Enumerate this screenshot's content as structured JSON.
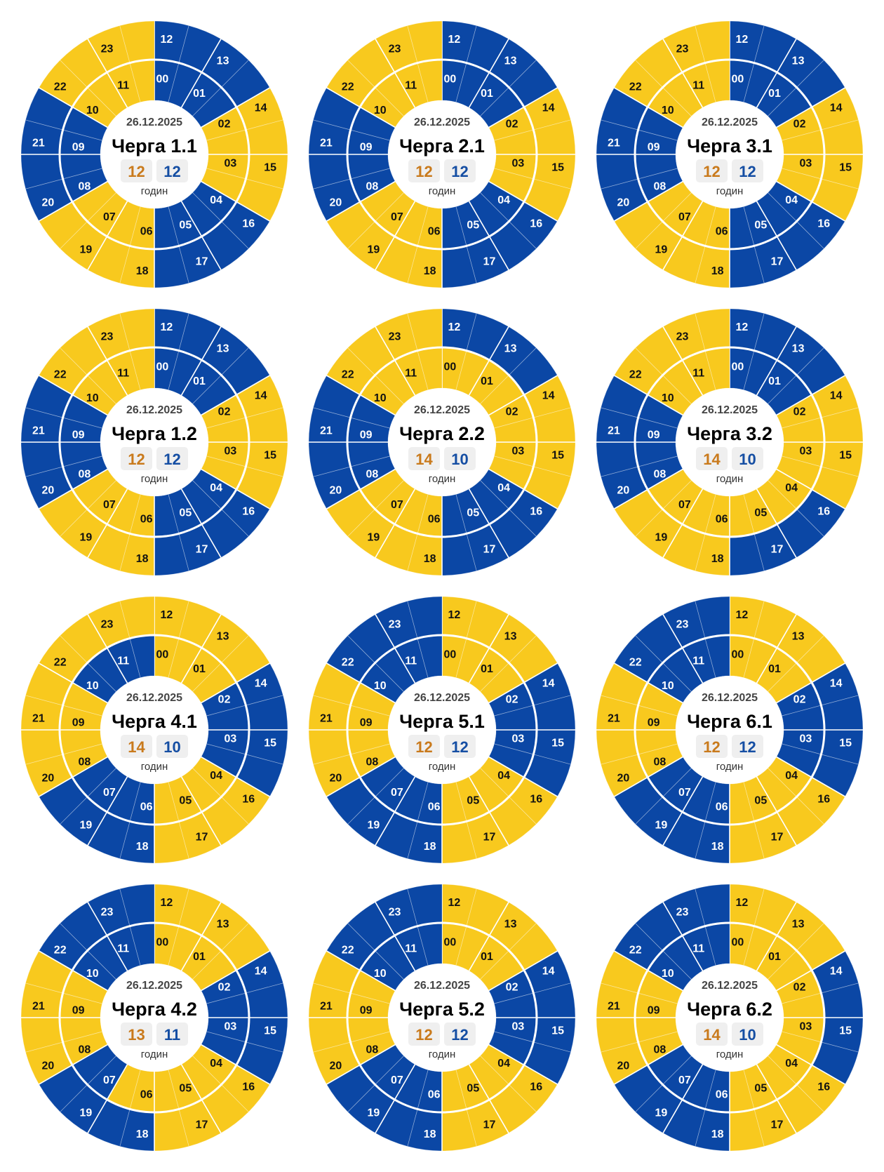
{
  "colors": {
    "yellow": "#f8c91e",
    "blue": "#0b47a5",
    "on_count": "#c97a1c",
    "off_count": "#154ea3",
    "badge_bg": "#efefef"
  },
  "chart_data": {
    "type": "radial-schedule",
    "slot_minutes": 30,
    "hour_labels": [
      "00",
      "01",
      "02",
      "03",
      "04",
      "05",
      "06",
      "07",
      "08",
      "09",
      "10",
      "11",
      "12",
      "13",
      "14",
      "15",
      "16",
      "17",
      "18",
      "19",
      "20",
      "21",
      "22",
      "23"
    ],
    "unit_label": "годин",
    "charts": [
      {
        "date": "26.12.2025",
        "title": "Черга 1.1",
        "yellow_hours": "12",
        "blue_hours": "12",
        "blue": [
          0,
          1,
          4,
          5,
          8,
          9,
          12,
          13,
          16,
          17,
          20,
          21
        ]
      },
      {
        "date": "26.12.2025",
        "title": "Черга 2.1",
        "yellow_hours": "12",
        "blue_hours": "12",
        "blue": [
          0,
          1,
          4,
          5,
          8,
          9,
          12,
          13,
          16,
          17,
          20,
          21
        ]
      },
      {
        "date": "26.12.2025",
        "title": "Черга 3.1",
        "yellow_hours": "12",
        "blue_hours": "12",
        "blue": [
          0,
          1,
          4,
          5,
          8,
          9,
          12,
          13,
          16,
          17,
          20,
          21
        ]
      },
      {
        "date": "26.12.2025",
        "title": "Черга 1.2",
        "yellow_hours": "12",
        "blue_hours": "12",
        "blue": [
          0,
          1,
          4,
          5,
          8,
          9,
          12,
          13,
          16,
          17,
          20,
          21
        ]
      },
      {
        "date": "26.12.2025",
        "title": "Черга 2.2",
        "yellow_hours": "14",
        "blue_hours": "10",
        "blue": [
          4,
          5,
          8,
          9,
          12,
          13,
          16,
          17,
          20,
          21
        ]
      },
      {
        "date": "26.12.2025",
        "title": "Черга 3.2",
        "yellow_hours": "14",
        "blue_hours": "10",
        "blue": [
          0,
          1,
          8,
          9,
          12,
          13,
          16,
          17,
          20,
          21
        ]
      },
      {
        "date": "26.12.2025",
        "title": "Черга 4.1",
        "yellow_hours": "14",
        "blue_hours": "10",
        "blue": [
          2,
          3,
          6,
          7,
          10,
          11,
          14,
          15,
          18,
          19
        ]
      },
      {
        "date": "26.12.2025",
        "title": "Черга 5.1",
        "yellow_hours": "12",
        "blue_hours": "12",
        "blue": [
          2,
          3,
          6,
          7,
          10,
          11,
          14,
          15,
          18,
          19,
          22,
          23
        ]
      },
      {
        "date": "26.12.2025",
        "title": "Черга 6.1",
        "yellow_hours": "12",
        "blue_hours": "12",
        "blue": [
          2,
          3,
          6,
          7,
          10,
          11,
          14,
          15,
          18,
          19,
          22,
          23
        ]
      },
      {
        "date": "26.12.2025",
        "title": "Черга 4.2",
        "yellow_hours": "13",
        "blue_hours": "11",
        "blue": [
          2,
          3,
          7,
          10,
          11,
          14,
          15,
          18,
          19,
          22,
          23
        ]
      },
      {
        "date": "26.12.2025",
        "title": "Черга 5.2",
        "yellow_hours": "12",
        "blue_hours": "12",
        "blue": [
          2,
          3,
          6,
          7,
          10,
          11,
          14,
          15,
          18,
          19,
          22,
          23
        ]
      },
      {
        "date": "26.12.2025",
        "title": "Черга 6.2",
        "yellow_hours": "14",
        "blue_hours": "10",
        "blue": [
          6,
          7,
          10,
          11,
          14,
          15,
          18,
          19,
          22,
          23
        ]
      }
    ]
  }
}
